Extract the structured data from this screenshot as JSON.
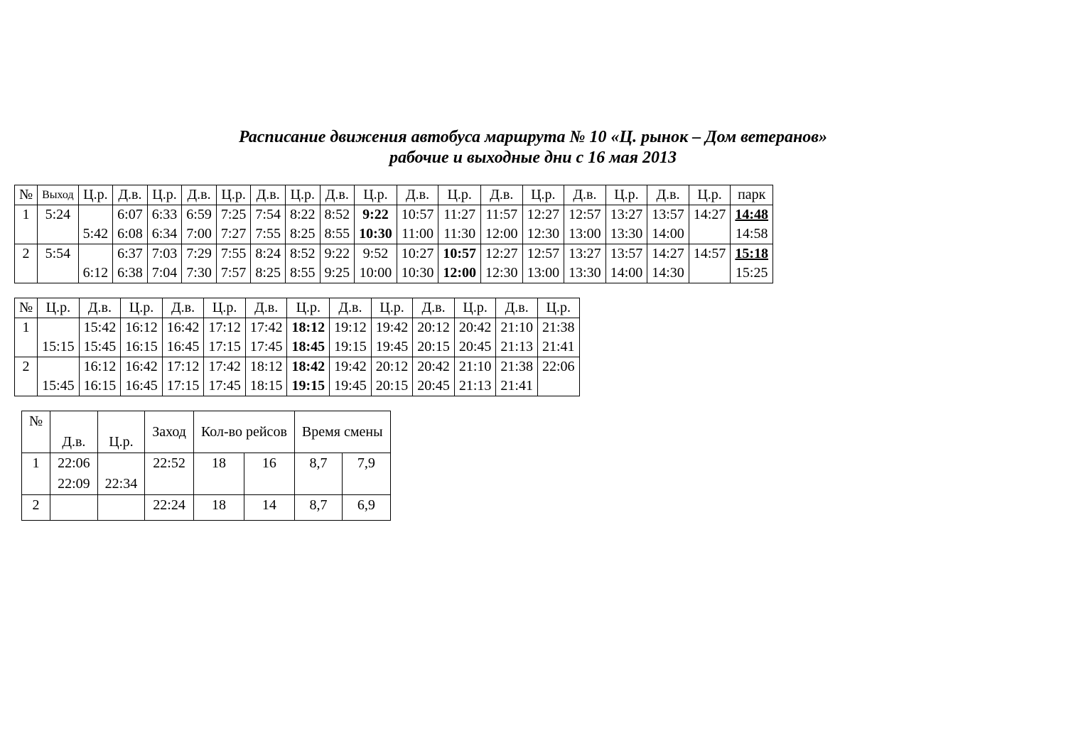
{
  "title": "Расписание движения автобуса маршрута № 10 «Ц. рынок – Дом ветеранов»",
  "subtitle": "рабочие и выходные дни с 16  мая 2013",
  "labels": {
    "num": "№",
    "exit": "Выход",
    "cr": "Ц.р.",
    "dv": "Д.в.",
    "park": "парк",
    "zahod": "Заход",
    "trips": "Кол-во рейсов",
    "shift": "Время смены"
  },
  "table1": {
    "rows": [
      {
        "num": "1",
        "exit": "5:24",
        "line1": [
          "",
          "6:07",
          "6:33",
          "6:59",
          "7:25",
          "7:54",
          "8:22",
          "8:52",
          "9:22",
          "10:57",
          "11:27",
          "11:57",
          "12:27",
          "12:57",
          "13:27",
          "13:57",
          "14:27",
          "14:48"
        ],
        "line2": [
          "5:42",
          "6:08",
          "6:34",
          "7:00",
          "7:27",
          "7:55",
          "8:25",
          "8:55",
          "10:30",
          "11:00",
          "11:30",
          "12:00",
          "12:30",
          "13:00",
          "13:30",
          "14:00",
          "",
          "14:58"
        ],
        "bold1": {
          "8": true
        },
        "bold2": {
          "8": true
        },
        "bu1": {
          "17": true
        }
      },
      {
        "num": "2",
        "exit": "5:54",
        "line1": [
          "",
          "6:37",
          "7:03",
          "7:29",
          "7:55",
          "8:24",
          "8:52",
          "9:22",
          "9:52",
          "10:27",
          "10:57",
          "12:27",
          "12:57",
          "13:27",
          "13:57",
          "14:27",
          "14:57",
          "15:18"
        ],
        "line2": [
          "6:12",
          "6:38",
          "7:04",
          "7:30",
          "7:57",
          "8:25",
          "8:55",
          "9:25",
          "10:00",
          "10:30",
          "12:00",
          "12:30",
          "13:00",
          "13:30",
          "14:00",
          "14:30",
          "",
          "15:25"
        ],
        "bold1": {
          "10": true
        },
        "bold2": {
          "10": true
        },
        "bu1": {
          "17": true
        }
      }
    ]
  },
  "table2": {
    "rows": [
      {
        "num": "1",
        "line1": [
          "",
          "15:42",
          "16:12",
          "16:42",
          "17:12",
          "17:42",
          "18:12",
          "19:12",
          "19:42",
          "20:12",
          "20:42",
          "21:10",
          "21:38"
        ],
        "line2": [
          "15:15",
          "15:45",
          "16:15",
          "16:45",
          "17:15",
          "17:45",
          "18:45",
          "19:15",
          "19:45",
          "20:15",
          "20:45",
          "21:13",
          "21:41"
        ],
        "bold1": {
          "6": true
        },
        "bold2": {
          "6": true
        }
      },
      {
        "num": "2",
        "line1": [
          "",
          "16:12",
          "16:42",
          "17:12",
          "17:42",
          "18:12",
          "18:42",
          "19:42",
          "20:12",
          "20:42",
          "21:10",
          "21:38",
          "22:06"
        ],
        "line2": [
          "15:45",
          "16:15",
          "16:45",
          "17:15",
          "17:45",
          "18:15",
          "19:15",
          "19:45",
          "20:15",
          "20:45",
          "21:13",
          "21:41",
          ""
        ],
        "bold1": {
          "6": true
        },
        "bold2": {
          "6": true
        }
      }
    ]
  },
  "table3": {
    "rows": [
      {
        "num": "1",
        "dv_a": "22:06",
        "dv_b": "22:09",
        "cr": "22:34",
        "zahod": "22:52",
        "trips_a": "18",
        "trips_b": "16",
        "shift_a": "8,7",
        "shift_b": "7,9"
      },
      {
        "num": "2",
        "dv_a": "",
        "dv_b": "",
        "cr": "",
        "zahod": "22:24",
        "trips_a": "18",
        "trips_b": "14",
        "shift_a": "8,7",
        "shift_b": "6,9"
      }
    ]
  }
}
